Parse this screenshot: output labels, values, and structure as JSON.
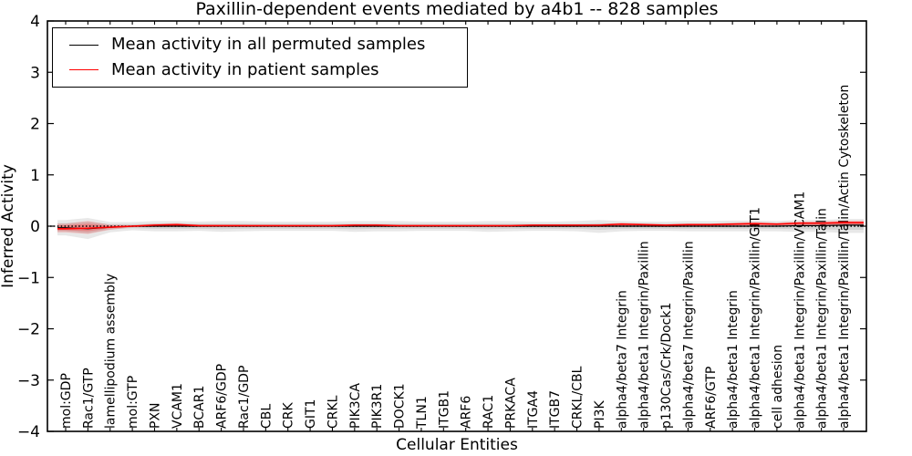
{
  "figure": {
    "legend": {
      "entries": [
        {
          "label": "Mean activity in all permuted samples",
          "color": "#000000"
        },
        {
          "label": "Mean activity in patient samples",
          "color": "#ff0000"
        }
      ]
    }
  },
  "chart_data": {
    "type": "line",
    "title": "Paxillin-dependent events mediated by a4b1 -- 828 samples",
    "xlabel": "Cellular Entities",
    "ylabel": "Inferred Activity",
    "ylim": [
      -4,
      4
    ],
    "yticks": [
      4,
      3,
      2,
      1,
      0,
      -1,
      -2,
      -3,
      -4
    ],
    "grid": false,
    "legend_position": "upper left",
    "samples": 828,
    "categories": [
      "mol:GDP",
      "Rac1/GTP",
      "lamellipodium assembly",
      "mol:GTP",
      "PXN",
      "VCAM1",
      "BCAR1",
      "ARF6/GDP",
      "Rac1/GDP",
      "CBL",
      "CRK",
      "GIT1",
      "CRKL",
      "PIK3CA",
      "PIK3R1",
      "DOCK1",
      "TLN1",
      "ITGB1",
      "ARF6",
      "RAC1",
      "PRKACA",
      "ITGA4",
      "ITGB7",
      "CRKL/CBL",
      "PI3K",
      "alpha4/beta7 Integrin",
      "alpha4/beta1 Integrin/Paxillin",
      "p130Cas/Crk/Dock1",
      "alpha4/beta7 Integrin/Paxillin",
      "ARF6/GTP",
      "alpha4/beta1 Integrin",
      "alpha4/beta1 Integrin/Paxillin/GIT1",
      "cell adhesion",
      "alpha4/beta1 Integrin/Paxillin/VCAM1",
      "alpha4/beta1 Integrin/Paxillin/Talin",
      "alpha4/beta1 Integrin/Paxillin/Talin/Actin Cytoskeleton"
    ],
    "series": [
      {
        "name": "Mean activity in all permuted samples",
        "color": "#000000",
        "width": 1.2,
        "values": [
          -0.03,
          -0.05,
          -0.02,
          0,
          0,
          0,
          0,
          0,
          0,
          0,
          0,
          0,
          0,
          0,
          0,
          0,
          0,
          0,
          0,
          0,
          0,
          0,
          0,
          0,
          0,
          0,
          0,
          0,
          0,
          0,
          0,
          0,
          0,
          0.01,
          0.01,
          0.02
        ]
      },
      {
        "name": "Mean activity in patient samples",
        "color": "#ff0000",
        "width": 1.6,
        "values": [
          -0.05,
          -0.04,
          -0.02,
          0,
          0.02,
          0.03,
          0.01,
          0.01,
          0.01,
          0.01,
          0.01,
          0.01,
          0.01,
          0.02,
          0.02,
          0.01,
          0.01,
          0.01,
          0.01,
          0.01,
          0.01,
          0.02,
          0.02,
          0.02,
          0.02,
          0.04,
          0.03,
          0.02,
          0.03,
          0.03,
          0.04,
          0.05,
          0.04,
          0.06,
          0.06,
          0.07
        ]
      }
    ],
    "bands": [
      {
        "name": "permuted-spread-outer",
        "color": "#000000",
        "opacity": 0.09,
        "upper": [
          0.12,
          0.16,
          0.08,
          0.08,
          0.1,
          0.1,
          0.09,
          0.1,
          0.1,
          0.09,
          0.09,
          0.09,
          0.09,
          0.1,
          0.1,
          0.1,
          0.09,
          0.09,
          0.09,
          0.1,
          0.1,
          0.09,
          0.09,
          0.1,
          0.12,
          0.1,
          0.09,
          0.09,
          0.1,
          0.1,
          0.11,
          0.11,
          0.1,
          0.12,
          0.12,
          0.14
        ],
        "lower": [
          -0.18,
          -0.25,
          -0.12,
          -0.08,
          -0.1,
          -0.1,
          -0.09,
          -0.11,
          -0.1,
          -0.09,
          -0.09,
          -0.09,
          -0.09,
          -0.11,
          -0.1,
          -0.1,
          -0.09,
          -0.09,
          -0.09,
          -0.11,
          -0.1,
          -0.09,
          -0.09,
          -0.1,
          -0.13,
          -0.1,
          -0.09,
          -0.09,
          -0.1,
          -0.1,
          -0.1,
          -0.1,
          -0.1,
          -0.11,
          -0.11,
          -0.13
        ]
      },
      {
        "name": "permuted-spread-inner",
        "color": "#000000",
        "opacity": 0.09,
        "upper": [
          0.06,
          0.09,
          0.04,
          0.04,
          0.05,
          0.05,
          0.05,
          0.05,
          0.05,
          0.05,
          0.05,
          0.05,
          0.05,
          0.05,
          0.05,
          0.05,
          0.05,
          0.05,
          0.05,
          0.05,
          0.05,
          0.05,
          0.05,
          0.05,
          0.06,
          0.05,
          0.05,
          0.05,
          0.05,
          0.05,
          0.06,
          0.06,
          0.05,
          0.06,
          0.06,
          0.08
        ],
        "lower": [
          -0.1,
          -0.14,
          -0.06,
          -0.04,
          -0.05,
          -0.05,
          -0.05,
          -0.06,
          -0.05,
          -0.05,
          -0.05,
          -0.05,
          -0.05,
          -0.06,
          -0.05,
          -0.05,
          -0.05,
          -0.05,
          -0.05,
          -0.06,
          -0.05,
          -0.05,
          -0.05,
          -0.05,
          -0.07,
          -0.05,
          -0.05,
          -0.05,
          -0.05,
          -0.05,
          -0.05,
          -0.05,
          -0.05,
          -0.06,
          -0.06,
          -0.07
        ]
      },
      {
        "name": "patient-spread-outer",
        "color": "#ff0000",
        "opacity": 0.18,
        "upper": [
          0.05,
          0.1,
          0.03,
          0.02,
          0.05,
          0.06,
          0.03,
          0.03,
          0.03,
          0.02,
          0.02,
          0.02,
          0.02,
          0.04,
          0.04,
          0.02,
          0.02,
          0.02,
          0.02,
          0.02,
          0.02,
          0.03,
          0.03,
          0.03,
          0.04,
          0.07,
          0.05,
          0.04,
          0.05,
          0.05,
          0.07,
          0.08,
          0.07,
          0.09,
          0.09,
          0.11
        ],
        "lower": [
          -0.12,
          -0.15,
          -0.07,
          -0.02,
          -0.01,
          -0.01,
          -0.01,
          -0.01,
          -0.01,
          -0.01,
          -0.01,
          -0.01,
          -0.01,
          -0.01,
          -0.01,
          -0.01,
          -0.01,
          -0.01,
          -0.01,
          -0.01,
          -0.01,
          -0.01,
          -0.01,
          -0.01,
          -0.01,
          0,
          0,
          0,
          0,
          0,
          0.01,
          0.01,
          0.01,
          0.01,
          0.01,
          0.02
        ]
      },
      {
        "name": "patient-spread-inner",
        "color": "#ff0000",
        "opacity": 0.22,
        "upper": [
          0.02,
          0.05,
          0.01,
          0.01,
          0.03,
          0.03,
          0.02,
          0.02,
          0.02,
          0.01,
          0.01,
          0.01,
          0.01,
          0.02,
          0.02,
          0.01,
          0.01,
          0.01,
          0.01,
          0.01,
          0.01,
          0.02,
          0.02,
          0.02,
          0.02,
          0.05,
          0.03,
          0.02,
          0.03,
          0.03,
          0.05,
          0.06,
          0.05,
          0.06,
          0.06,
          0.08
        ],
        "lower": [
          -0.08,
          -0.1,
          -0.04,
          -0.01,
          0,
          0,
          0,
          0,
          0,
          0,
          0,
          0,
          0,
          0,
          0,
          0,
          0,
          0,
          0,
          0,
          0,
          0.01,
          0.01,
          0,
          0.01,
          0.01,
          0.02,
          0.02,
          0.02,
          0.02,
          0.02,
          0.03,
          0.02,
          0.02,
          0.02,
          0.03
        ]
      }
    ],
    "zero_line": {
      "value": 0,
      "style": "dotted",
      "color": "#000000"
    }
  }
}
